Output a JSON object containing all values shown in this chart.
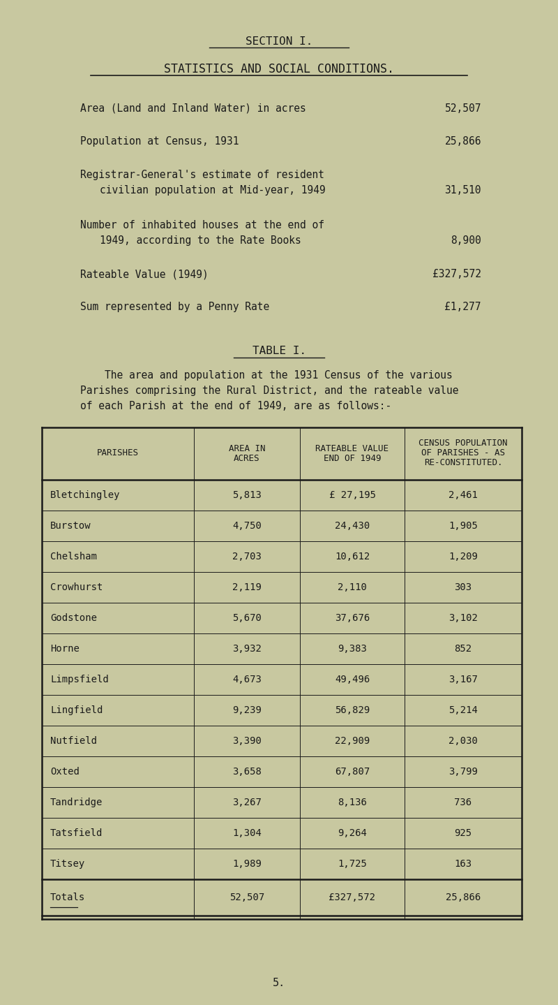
{
  "bg_color": "#c8c8a0",
  "text_color": "#1a1a1a",
  "section_title": "SECTION I.",
  "subtitle": "STATISTICS AND SOCIAL CONDITIONS.",
  "stats": [
    {
      "label": "Area (Land and Inland Water) in acres",
      "value": "52,507",
      "multiline": false
    },
    {
      "label": "Population at Census, 1931",
      "value": "25,866",
      "multiline": false
    },
    {
      "label1": "Registrar-General's estimate of resident",
      "label2": "civilian population at Mid-year, 1949",
      "value": "31,510",
      "multiline": true
    },
    {
      "label1": "Number of inhabited houses at the end of",
      "label2": "1949, according to the Rate Books",
      "value": "8,900",
      "multiline": true
    },
    {
      "label": "Rateable Value (1949)",
      "value": "£327,572",
      "multiline": false
    },
    {
      "label": "Sum represented by a Penny Rate",
      "value": "£1,277",
      "multiline": false
    }
  ],
  "table_title": "TABLE I.",
  "table_intro_lines": [
    "    The area and population at the 1931 Census of the various",
    "Parishes comprising the Rural District, and the rateable value",
    "of each Parish at the end of 1949, are as follows:-"
  ],
  "col_headers": [
    "PARISHES",
    "AREA IN\nACRES",
    "RATEABLE VALUE\nEND OF 1949",
    "CENSUS POPULATION\nOF PARISHES - AS\nRE-CONSTITUTED."
  ],
  "parishes": [
    [
      "Bletchingley",
      "5,813",
      "£ 27,195",
      "2,461"
    ],
    [
      "Burstow",
      "4,750",
      "24,430",
      "1,905"
    ],
    [
      "Chelsham",
      "2,703",
      "10,612",
      "1,209"
    ],
    [
      "Crowhurst",
      "2,119",
      "2,110",
      "303"
    ],
    [
      "Godstone",
      "5,670",
      "37,676",
      "3,102"
    ],
    [
      "Horne",
      "3,932",
      "9,383",
      "852"
    ],
    [
      "Limpsfield",
      "4,673",
      "49,496",
      "3,167"
    ],
    [
      "Lingfield",
      "9,239",
      "56,829",
      "5,214"
    ],
    [
      "Nutfield",
      "3,390",
      "22,909",
      "2,030"
    ],
    [
      "Oxted",
      "3,658",
      "67,807",
      "3,799"
    ],
    [
      "Tandridge",
      "3,267",
      "8,136",
      "736"
    ],
    [
      "Tatsfield",
      "1,304",
      "9,264",
      "925"
    ],
    [
      "Titsey",
      "1,989",
      "1,725",
      "163"
    ]
  ],
  "totals": [
    "Totals",
    "52,507",
    "£327,572",
    "25,866"
  ],
  "page_number": "5."
}
